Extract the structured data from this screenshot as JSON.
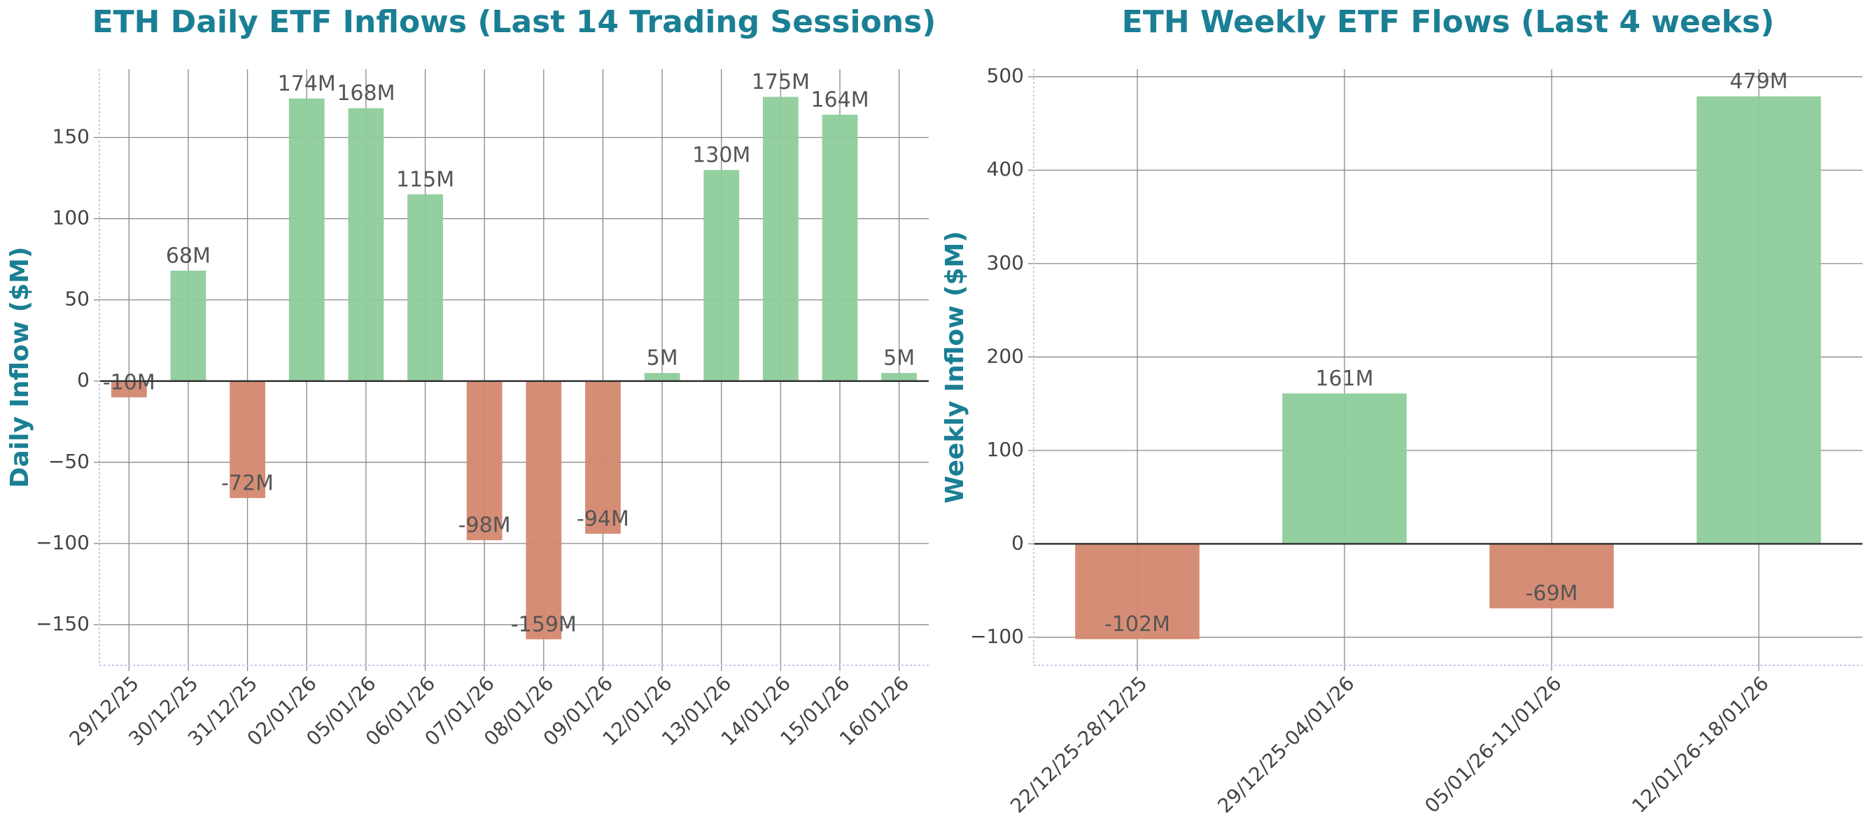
{
  "chart_data": [
    {
      "type": "bar",
      "title": "ETH Daily ETF Inflows (Last 14 Trading Sessions)",
      "y_label": "Daily Inflow ($M)",
      "categories": [
        "29/12/25",
        "30/12/25",
        "31/12/25",
        "02/01/26",
        "05/01/26",
        "06/01/26",
        "07/01/26",
        "08/01/26",
        "09/01/26",
        "12/01/26",
        "13/01/26",
        "14/01/26",
        "15/01/26",
        "16/01/26"
      ],
      "values": [
        -10,
        68,
        -72,
        174,
        168,
        115,
        -98,
        -159,
        -94,
        5,
        130,
        175,
        164,
        5
      ],
      "value_labels": [
        "-10M",
        "68M",
        "-72M",
        "174M",
        "168M",
        "115M",
        "-98M",
        "-159M",
        "-94M",
        "5M",
        "130M",
        "175M",
        "164M",
        "5M"
      ],
      "positive_color": "#8ecc9b",
      "negative_color": "#d4876f",
      "ylim": [
        -175,
        192
      ],
      "yticks": [
        {
          "value": -150,
          "label": "−150"
        },
        {
          "value": -100,
          "label": "−100"
        },
        {
          "value": -50,
          "label": "−50"
        },
        0,
        50,
        100,
        150
      ],
      "grid": true
    },
    {
      "type": "bar",
      "title": "ETH Weekly ETF Flows (Last 4 weeks)",
      "y_label": "Weekly Inflow ($M)",
      "categories": [
        "22/12/25-28/12/25",
        "29/12/25-04/01/26",
        "05/01/26-11/01/26",
        "12/01/26-18/01/26"
      ],
      "values": [
        -102,
        161,
        -69,
        479
      ],
      "value_labels": [
        "-102M",
        "161M",
        "-69M",
        "479M"
      ],
      "positive_color": "#8ecc9b",
      "negative_color": "#d4876f",
      "ylim": [
        -130,
        508
      ],
      "yticks": [
        {
          "value": -100,
          "label": "−100"
        },
        0,
        100,
        200,
        300,
        400,
        500
      ],
      "grid": true
    }
  ]
}
